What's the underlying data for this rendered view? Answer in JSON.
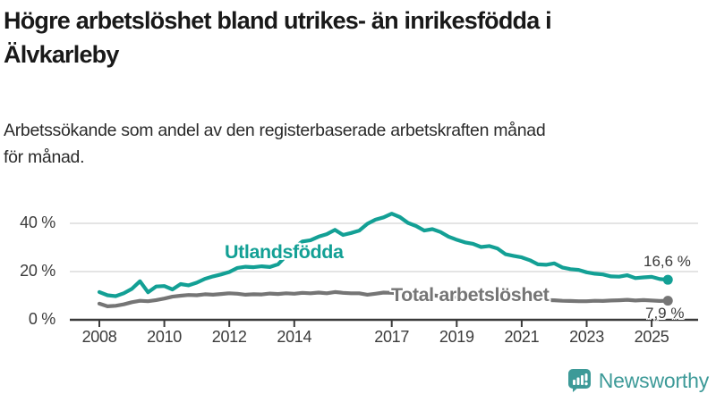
{
  "header": {
    "title_line1": "Högre arbetslöshet bland utrikes- än inrikesfödda i",
    "title_line2": "Älvkarleby",
    "subtitle_line1": "Arbetssökande som andel av den registerbaserade arbetskraften månad",
    "subtitle_line2": "för månad."
  },
  "chart_data": {
    "type": "line",
    "title": "Högre arbetslöshet bland utrikes- än inrikesfödda i Älvkarleby",
    "subtitle": "Arbetssökande som andel av den registerbaserade arbetskraften månad för månad.",
    "x_unit": "year",
    "y_unit": "%",
    "x_start": 2008,
    "x_end": 2025.5,
    "x_step": 0.25,
    "ylim": [
      0,
      47
    ],
    "grid": "horizontal",
    "grid_color": "#dcdcdc",
    "axis_color": "#3a3a3a",
    "legend": "inline-labels",
    "x_ticks": [
      2008,
      2010,
      2012,
      2014,
      2017,
      2019,
      2021,
      2023,
      2025
    ],
    "y_ticks": [
      0,
      20,
      40
    ],
    "y_tick_suffix": " %",
    "series": [
      {
        "name": "Utlandsfödda",
        "color": "#13a095",
        "end_label": "16,6 %",
        "end_value": 16.6,
        "values": [
          11.5,
          10.2,
          9.8,
          11.0,
          12.8,
          16.0,
          11.4,
          13.8,
          14.0,
          12.6,
          14.8,
          14.3,
          15.4,
          17.0,
          18.0,
          18.8,
          19.8,
          21.5,
          22.0,
          21.8,
          22.2,
          21.9,
          23.0,
          26.5,
          30.0,
          32.5,
          33.0,
          34.5,
          35.5,
          37.3,
          35.2,
          36.0,
          37.0,
          39.8,
          41.5,
          42.5,
          44.0,
          42.6,
          40.2,
          38.9,
          37.0,
          37.6,
          36.4,
          34.5,
          33.2,
          32.1,
          31.5,
          30.2,
          30.6,
          29.6,
          27.2,
          26.5,
          25.9,
          24.7,
          23.0,
          22.8,
          23.4,
          21.7,
          21.0,
          20.7,
          19.7,
          19.1,
          18.8,
          18.0,
          17.9,
          18.5,
          17.3,
          17.6,
          17.8,
          16.9,
          16.6
        ]
      },
      {
        "name": "Total arbetslöshet",
        "color": "#757575",
        "end_label": "7,9 %",
        "end_value": 7.9,
        "values": [
          6.7,
          5.6,
          5.8,
          6.4,
          7.3,
          7.9,
          7.7,
          8.2,
          8.8,
          9.6,
          10.0,
          10.3,
          10.2,
          10.6,
          10.4,
          10.7,
          11.0,
          10.8,
          10.4,
          10.6,
          10.5,
          10.9,
          10.7,
          11.0,
          10.8,
          11.2,
          11.0,
          11.3,
          11.0,
          11.5,
          11.2,
          11.0,
          11.0,
          10.4,
          10.8,
          11.3,
          11.2,
          10.9,
          10.5,
          10.3,
          10.0,
          10.2,
          9.8,
          9.9,
          9.5,
          9.3,
          9.1,
          9.2,
          9.4,
          9.8,
          9.6,
          9.3,
          9.0,
          8.7,
          8.4,
          8.2,
          8.1,
          7.9,
          7.8,
          7.7,
          7.7,
          7.9,
          7.8,
          8.0,
          8.1,
          8.3,
          8.0,
          8.2,
          8.0,
          7.8,
          7.9
        ]
      }
    ]
  },
  "footer": {
    "brand": "Newsworthy",
    "brand_color": "#3d9a98",
    "logo_icon": "bar-chart-speech-bubble-icon"
  }
}
